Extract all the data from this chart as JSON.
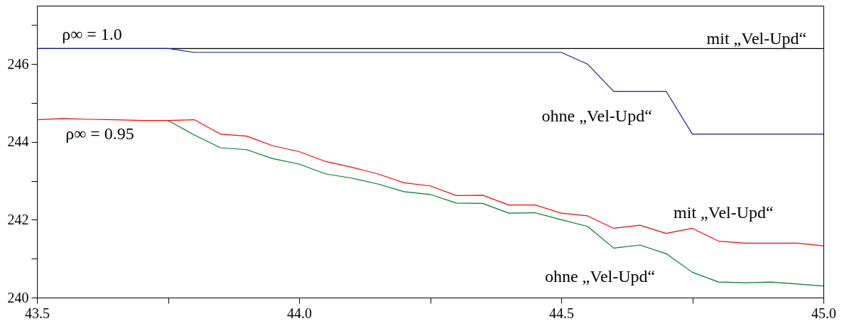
{
  "chart_data": {
    "type": "line",
    "x": [
      43.5,
      43.55,
      43.6,
      43.65,
      43.7,
      43.75,
      43.8,
      43.85,
      43.9,
      43.95,
      44.0,
      44.05,
      44.1,
      44.15,
      44.2,
      44.25,
      44.3,
      44.35,
      44.4,
      44.45,
      44.5,
      44.55,
      44.6,
      44.65,
      44.7,
      44.75,
      44.8,
      44.85,
      44.9,
      44.95,
      45.0
    ],
    "series": [
      {
        "color": "#000000",
        "x": [
          43.5,
          45.0
        ],
        "values": [
          246.4,
          246.4
        ]
      },
      {
        "color": "#1a1a9a",
        "x": [
          43.5,
          43.75,
          43.8,
          44.5,
          44.55,
          44.6,
          44.7,
          44.75,
          45.0
        ],
        "values": [
          246.4,
          246.4,
          246.3,
          246.3,
          246.0,
          245.3,
          245.3,
          244.2,
          244.2
        ]
      },
      {
        "color": "#ff0000",
        "values": [
          244.57,
          244.6,
          244.58,
          244.57,
          244.55,
          244.55,
          244.57,
          244.2,
          244.15,
          243.9,
          243.75,
          243.5,
          243.35,
          243.18,
          242.95,
          242.87,
          242.62,
          242.63,
          242.38,
          242.38,
          242.17,
          242.1,
          241.78,
          241.86,
          241.65,
          241.78,
          241.45,
          241.4,
          241.4,
          241.4,
          241.33
        ]
      },
      {
        "color": "#007a2a",
        "values": [
          null,
          null,
          null,
          null,
          null,
          244.55,
          244.18,
          243.85,
          243.8,
          243.57,
          243.43,
          243.18,
          243.07,
          242.92,
          242.72,
          242.65,
          242.43,
          242.42,
          242.17,
          242.18,
          242.0,
          241.83,
          241.27,
          241.35,
          241.13,
          240.65,
          240.4,
          240.38,
          240.4,
          240.35,
          240.3
        ]
      }
    ],
    "xlim": [
      43.5,
      45.0
    ],
    "xticks": [
      {
        "value": 43.5,
        "label": "43.5"
      },
      {
        "value": 43.75,
        "label": null
      },
      {
        "value": 44.0,
        "label": "44.0"
      },
      {
        "value": 44.25,
        "label": null
      },
      {
        "value": 44.5,
        "label": "44.5"
      },
      {
        "value": 44.75,
        "label": null
      },
      {
        "value": 45.0,
        "label": "45.0"
      }
    ],
    "ylim": [
      240,
      247.5
    ],
    "yticks": [
      240,
      {
        "value": 241,
        "label": null
      },
      242,
      {
        "value": 243,
        "label": null
      },
      244,
      {
        "value": 245,
        "label": null
      },
      246,
      {
        "value": 247,
        "label": null
      }
    ],
    "grid": false,
    "marker": "none",
    "line_style": "solid",
    "annotations": [
      "ρ∞ = 1.0",
      "ρ∞ = 0.95",
      "mit „Vel-Upd“",
      "ohne „Vel-Upd“",
      "mit „Vel-Upd“",
      "ohne „Vel-Upd“"
    ]
  }
}
